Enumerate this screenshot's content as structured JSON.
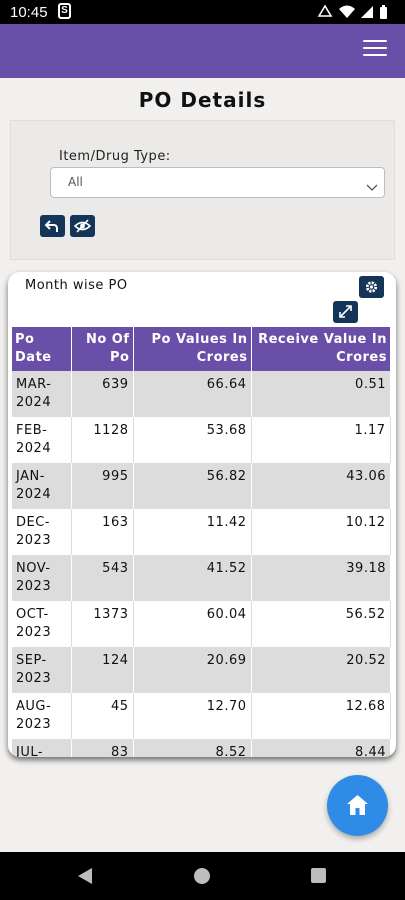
{
  "status_bar": {
    "time": "10:45",
    "notification_glyph": "S",
    "icons": [
      "notification-s-icon",
      "wifi-icon",
      "signal-icon",
      "battery-icon"
    ]
  },
  "app_bar": {
    "menu_icon": "hamburger-menu-icon",
    "color": "#6a4fa8"
  },
  "page": {
    "title": "PO Details"
  },
  "filter": {
    "label": "Item/Drug Type:",
    "selected": "All",
    "back_icon": "undo-arrow-icon",
    "hide_icon": "eye-off-icon"
  },
  "card": {
    "title": "Month wise PO",
    "settings_icon": "gear-icon",
    "expand_icon": "expand-icon"
  },
  "table": {
    "headers": [
      "Po Date",
      "No Of Po",
      "Po Values In Crores",
      "Receive Value In Crores"
    ],
    "rows": [
      [
        "MAR-2024",
        "639",
        "66.64",
        "0.51"
      ],
      [
        "FEB-2024",
        "1128",
        "53.68",
        "1.17"
      ],
      [
        "JAN-2024",
        "995",
        "56.82",
        "43.06"
      ],
      [
        "DEC-2023",
        "163",
        "11.42",
        "10.12"
      ],
      [
        "NOV-2023",
        "543",
        "41.52",
        "39.18"
      ],
      [
        "OCT-2023",
        "1373",
        "60.04",
        "56.52"
      ],
      [
        "SEP-2023",
        "124",
        "20.69",
        "20.52"
      ],
      [
        "AUG-2023",
        "45",
        "12.70",
        "12.68"
      ],
      [
        "JUL-",
        "83",
        "8.52",
        "8.44"
      ]
    ]
  },
  "fab": {
    "icon": "home-icon",
    "color": "#2e8be6"
  },
  "nav_bar": {
    "icons": [
      "back-triangle-icon",
      "home-circle-icon",
      "recents-square-icon"
    ]
  },
  "colors": {
    "header_purple": "#6a4fa8",
    "button_navy": "#143458",
    "row_gray": "#dcdcdc",
    "fab_blue": "#2e8be6"
  }
}
